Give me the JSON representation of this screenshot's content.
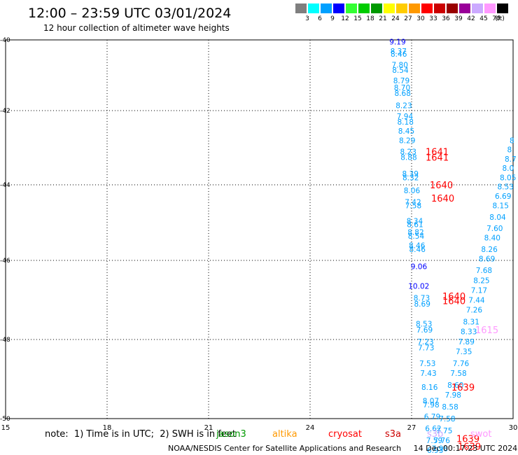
{
  "header": {
    "title": "12:00 – 23:59 UTC 03/01/2024",
    "subtitle": "12 hour collection of altimeter wave heights"
  },
  "legend": {
    "unit": "(ft)",
    "bins": [
      {
        "label": "3",
        "color": "#7f7f7f"
      },
      {
        "label": "6",
        "color": "#00ffff"
      },
      {
        "label": "9",
        "color": "#00a0ff"
      },
      {
        "label": "12",
        "color": "#0000ff"
      },
      {
        "label": "15",
        "color": "#33ff33"
      },
      {
        "label": "18",
        "color": "#00cc00"
      },
      {
        "label": "21",
        "color": "#009900"
      },
      {
        "label": "24",
        "color": "#ffff00"
      },
      {
        "label": "27",
        "color": "#ffcc00"
      },
      {
        "label": "30",
        "color": "#ff9900"
      },
      {
        "label": "33",
        "color": "#ff0000"
      },
      {
        "label": "36",
        "color": "#cc0000"
      },
      {
        "label": "39",
        "color": "#990000"
      },
      {
        "label": "42",
        "color": "#990099"
      },
      {
        "label": "45",
        "color": "#ccaaff"
      },
      {
        "label": "70",
        "color": "#ff99ff"
      },
      {
        "label": "",
        "color": "#000000"
      }
    ]
  },
  "axes": {
    "lon_ticks": [
      "15",
      "18",
      "21",
      "24",
      "27",
      "30"
    ],
    "lat_ticks": [
      "-40",
      "-42",
      "-44",
      "-46",
      "-48",
      "-50"
    ]
  },
  "note": {
    "text": "note:  1) Time is in UTC;  2) SWH is in feet",
    "satellites": [
      {
        "name": "jason3",
        "color": "#009900"
      },
      {
        "name": "altika",
        "color": "#ff9900"
      },
      {
        "name": "cryosat",
        "color": "#ff0000"
      },
      {
        "name": "s3a",
        "color": "#cc0000"
      },
      {
        "name": "s3b",
        "color": "#ccaaff"
      },
      {
        "name": "swot",
        "color": "#ff99ff"
      }
    ]
  },
  "footer": {
    "credit": "NOAA/NESDIS Center for Satellite Applications and Research",
    "timestamp": "14 Dec 00:17:23 UTC 2024"
  },
  "colors": {
    "swh_6_9": "#00a0ff",
    "swh_9_12": "#0000ff",
    "time_label": "#ff0000",
    "time_label_swot": "#ff99ff"
  },
  "track_readings": {
    "left_track": [
      {
        "lat": -40.05,
        "swh": "9.19",
        "color": "#0000ff"
      },
      {
        "lat": -40.32,
        "swh": "8.37",
        "color": "#00a0ff"
      },
      {
        "lat": -40.4,
        "swh": "8.46",
        "color": "#00a0ff"
      },
      {
        "lat": -40.7,
        "swh": "7.80",
        "color": "#00a0ff"
      },
      {
        "lat": -40.85,
        "swh": "8.54",
        "color": "#00a0ff"
      },
      {
        "lat": -41.15,
        "swh": "8.79",
        "color": "#00a0ff"
      },
      {
        "lat": -41.35,
        "swh": "8.70",
        "color": "#00a0ff"
      },
      {
        "lat": -41.5,
        "swh": "8.68",
        "color": "#00a0ff"
      },
      {
        "lat": -41.85,
        "swh": "8.23",
        "color": "#00a0ff"
      },
      {
        "lat": -42.15,
        "swh": "7.94",
        "color": "#00a0ff"
      },
      {
        "lat": -42.3,
        "swh": "8.18",
        "color": "#00a0ff"
      },
      {
        "lat": -42.55,
        "swh": "8.45",
        "color": "#00a0ff"
      },
      {
        "lat": -42.8,
        "swh": "8.29",
        "color": "#00a0ff"
      },
      {
        "lat": -43.1,
        "swh": "8.23",
        "color": "#00a0ff"
      },
      {
        "lat": -43.25,
        "swh": "8.88",
        "color": "#00a0ff"
      },
      {
        "lat": -43.7,
        "swh": "8.39",
        "color": "#00a0ff"
      },
      {
        "lat": -43.8,
        "swh": "8.32",
        "color": "#00a0ff"
      },
      {
        "lat": -44.15,
        "swh": "8.06",
        "color": "#00a0ff"
      },
      {
        "lat": -44.45,
        "swh": "7.42",
        "color": "#00a0ff"
      },
      {
        "lat": -44.55,
        "swh": "7.58",
        "color": "#00a0ff"
      },
      {
        "lat": -44.95,
        "swh": "8.34",
        "color": "#00a0ff"
      },
      {
        "lat": -45.05,
        "swh": "8.61",
        "color": "#00a0ff"
      },
      {
        "lat": -45.25,
        "swh": "8.82",
        "color": "#00a0ff"
      },
      {
        "lat": -45.35,
        "swh": "8.54",
        "color": "#00a0ff"
      },
      {
        "lat": -45.6,
        "swh": "8.46",
        "color": "#00a0ff"
      },
      {
        "lat": -45.7,
        "swh": "8.46",
        "color": "#00a0ff"
      },
      {
        "lat": -46.15,
        "swh": "9.06",
        "color": "#0000ff"
      },
      {
        "lat": -46.65,
        "swh": "10.02",
        "color": "#0000ff"
      },
      {
        "lat": -46.95,
        "swh": "8.73",
        "color": "#00a0ff"
      },
      {
        "lat": -47.1,
        "swh": "8.69",
        "color": "#00a0ff"
      },
      {
        "lat": -47.6,
        "swh": "8.53",
        "color": "#00a0ff"
      },
      {
        "lat": -47.75,
        "swh": "7.69",
        "color": "#00a0ff"
      },
      {
        "lat": -48.05,
        "swh": "7.23",
        "color": "#00a0ff"
      },
      {
        "lat": -48.2,
        "swh": "7.73",
        "color": "#00a0ff"
      },
      {
        "lat": -48.6,
        "swh": "7.53",
        "color": "#00a0ff"
      },
      {
        "lat": -48.85,
        "swh": "7.43",
        "color": "#00a0ff"
      },
      {
        "lat": -49.2,
        "swh": "8.16",
        "color": "#00a0ff"
      },
      {
        "lat": -49.55,
        "swh": "8.07",
        "color": "#00a0ff"
      },
      {
        "lat": -49.65,
        "swh": "7.98",
        "color": "#00a0ff"
      },
      {
        "lat": -49.95,
        "swh": "6.79",
        "color": "#00a0ff"
      },
      {
        "lat": -50.25,
        "swh": "6.62",
        "color": "#00a0ff"
      },
      {
        "lat": -50.55,
        "swh": "7.59",
        "color": "#00a0ff"
      },
      {
        "lat": -50.8,
        "swh": "6.93",
        "color": "#00a0ff"
      }
    ],
    "right_track": [
      {
        "lat": -42.8,
        "swh": "8",
        "color": "#00a0ff"
      },
      {
        "lat": -43.05,
        "swh": "8",
        "color": "#00a0ff"
      },
      {
        "lat": -43.3,
        "swh": "8.7",
        "color": "#00a0ff"
      },
      {
        "lat": -43.55,
        "swh": "8.0",
        "color": "#00a0ff"
      },
      {
        "lat": -43.8,
        "swh": "8.05",
        "color": "#00a0ff"
      },
      {
        "lat": -44.05,
        "swh": "8.53",
        "color": "#00a0ff"
      },
      {
        "lat": -44.3,
        "swh": "6.69",
        "color": "#00a0ff"
      },
      {
        "lat": -44.55,
        "swh": "8.15",
        "color": "#00a0ff"
      },
      {
        "lat": -44.85,
        "swh": "8.04",
        "color": "#00a0ff"
      },
      {
        "lat": -45.15,
        "swh": "7.60",
        "color": "#00a0ff"
      },
      {
        "lat": -45.4,
        "swh": "8.40",
        "color": "#00a0ff"
      },
      {
        "lat": -45.7,
        "swh": "8.26",
        "color": "#00a0ff"
      },
      {
        "lat": -45.95,
        "swh": "8.69",
        "color": "#00a0ff"
      },
      {
        "lat": -46.25,
        "swh": "7.68",
        "color": "#00a0ff"
      },
      {
        "lat": -46.5,
        "swh": "8.25",
        "color": "#00a0ff"
      },
      {
        "lat": -46.75,
        "swh": "7.17",
        "color": "#00a0ff"
      },
      {
        "lat": -47.0,
        "swh": "7.44",
        "color": "#00a0ff"
      },
      {
        "lat": -47.25,
        "swh": "7.26",
        "color": "#00a0ff"
      },
      {
        "lat": -47.55,
        "swh": "8.31",
        "color": "#00a0ff"
      },
      {
        "lat": -47.8,
        "swh": "8.33",
        "color": "#00a0ff"
      },
      {
        "lat": -48.05,
        "swh": "7.89",
        "color": "#00a0ff"
      },
      {
        "lat": -48.3,
        "swh": "7.35",
        "color": "#00a0ff"
      },
      {
        "lat": -48.6,
        "swh": "7.76",
        "color": "#00a0ff"
      },
      {
        "lat": -48.85,
        "swh": "7.58",
        "color": "#00a0ff"
      },
      {
        "lat": -49.15,
        "swh": "8.60",
        "color": "#00a0ff"
      },
      {
        "lat": -49.4,
        "swh": "7.98",
        "color": "#00a0ff"
      },
      {
        "lat": -49.7,
        "swh": "8.58",
        "color": "#00a0ff"
      },
      {
        "lat": -50.0,
        "swh": "7.58",
        "color": "#00a0ff"
      },
      {
        "lat": -50.3,
        "swh": "7.75",
        "color": "#00a0ff"
      },
      {
        "lat": -50.55,
        "swh": "7.76",
        "color": "#00a0ff"
      },
      {
        "lat": -50.75,
        "swh": "7.98",
        "color": "#00a0ff"
      }
    ],
    "pass_times": [
      {
        "lat": -43.1,
        "text": "1641",
        "color": "#ff0000"
      },
      {
        "lat": -43.25,
        "text": "1641",
        "color": "#ff0000"
      },
      {
        "lat": -44.0,
        "text": "1640",
        "color": "#ff0000"
      },
      {
        "lat": -44.35,
        "text": "1640",
        "color": "#ff0000"
      },
      {
        "lat": -46.9,
        "text": "1640",
        "color": "#ff0000"
      },
      {
        "lat": -47.02,
        "text": "1640",
        "color": "#ff0000"
      },
      {
        "lat": -47.75,
        "text": "1615",
        "color": "#ff99ff"
      },
      {
        "lat": -49.2,
        "text": "1639",
        "color": "#ff0000"
      },
      {
        "lat": -50.5,
        "text": "1639",
        "color": "#ff0000"
      },
      {
        "lat": -50.7,
        "text": "1639",
        "color": "#ff0000"
      }
    ]
  }
}
